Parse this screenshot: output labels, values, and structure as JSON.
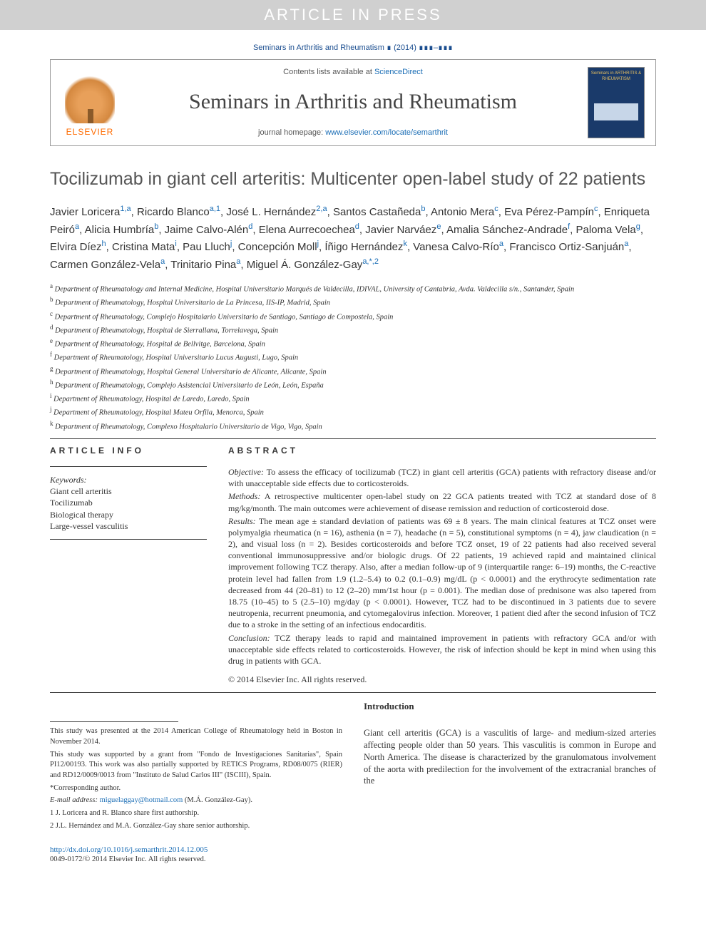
{
  "watermark": "ARTICLE IN PRESS",
  "journal_ref": "Seminars in Arthritis and Rheumatism ∎ (2014) ∎∎∎–∎∎∎",
  "header": {
    "contents_prefix": "Contents lists available at ",
    "contents_link": "ScienceDirect",
    "journal_title": "Seminars in Arthritis and Rheumatism",
    "homepage_prefix": "journal homepage: ",
    "homepage_link": "www.elsevier.com/locate/semarthrit",
    "publisher": "ELSEVIER",
    "cover_caption": "Seminars in ARTHRITIS & RHEUMATISM"
  },
  "title": "Tocilizumab in giant cell arteritis: Multicenter open-label study of 22 patients",
  "authors_html_parts": [
    {
      "name": "Javier Loricera",
      "sup": "1,a"
    },
    {
      "name": "Ricardo Blanco",
      "sup": "a,1"
    },
    {
      "name": "José L. Hernández",
      "sup": "2,a"
    },
    {
      "name": "Santos Castañeda",
      "sup": "b"
    },
    {
      "name": "Antonio Mera",
      "sup": "c"
    },
    {
      "name": "Eva Pérez-Pampín",
      "sup": "c"
    },
    {
      "name": "Enriqueta Peiró",
      "sup": "a"
    },
    {
      "name": "Alicia Humbría",
      "sup": "b"
    },
    {
      "name": "Jaime Calvo-Alén",
      "sup": "d"
    },
    {
      "name": "Elena Aurrecoechea",
      "sup": "d"
    },
    {
      "name": "Javier Narváez",
      "sup": "e"
    },
    {
      "name": "Amalia Sánchez-Andrade",
      "sup": "f"
    },
    {
      "name": "Paloma Vela",
      "sup": "g"
    },
    {
      "name": "Elvira Díez",
      "sup": "h"
    },
    {
      "name": "Cristina Mata",
      "sup": "i"
    },
    {
      "name": "Pau Lluch",
      "sup": "j"
    },
    {
      "name": "Concepción Moll",
      "sup": "j"
    },
    {
      "name": "Íñigo Hernández",
      "sup": "k"
    },
    {
      "name": "Vanesa Calvo-Río",
      "sup": "a"
    },
    {
      "name": "Francisco Ortiz-Sanjuán",
      "sup": "a"
    },
    {
      "name": "Carmen González-Vela",
      "sup": "a"
    },
    {
      "name": "Trinitario Pina",
      "sup": "a"
    },
    {
      "name": "Miguel Á. González-Gay",
      "sup": "a,*,2"
    }
  ],
  "affiliations": [
    {
      "key": "a",
      "text": "Department of Rheumatology and Internal Medicine, Hospital Universitario Marqués de Valdecilla, IDIVAL, University of Cantabria, Avda. Valdecilla s/n., Santander, Spain"
    },
    {
      "key": "b",
      "text": "Department of Rheumatology, Hospital Universitario de La Princesa, IIS-IP, Madrid, Spain"
    },
    {
      "key": "c",
      "text": "Department of Rheumatology, Complejo Hospitalario Universitario de Santiago, Santiago de Compostela, Spain"
    },
    {
      "key": "d",
      "text": "Department of Rheumatology, Hospital de Sierrallana, Torrelavega, Spain"
    },
    {
      "key": "e",
      "text": "Department of Rheumatology, Hospital de Bellvitge, Barcelona, Spain"
    },
    {
      "key": "f",
      "text": "Department of Rheumatology, Hospital Universitario Lucus Augusti, Lugo, Spain"
    },
    {
      "key": "g",
      "text": "Department of Rheumatology, Hospital General Universitario de Alicante, Alicante, Spain"
    },
    {
      "key": "h",
      "text": "Department of Rheumatology, Complejo Asistencial Universitario de León, León, España"
    },
    {
      "key": "i",
      "text": "Department of Rheumatology, Hospital de Laredo, Laredo, Spain"
    },
    {
      "key": "j",
      "text": "Department of Rheumatology, Hospital Mateu Orfila, Menorca, Spain"
    },
    {
      "key": "k",
      "text": "Department of Rheumatology, Complexo Hospitalario Universitario de Vigo, Vigo, Spain"
    }
  ],
  "article_info": {
    "heading": "ARTICLE INFO",
    "keywords_label": "Keywords:",
    "keywords": [
      "Giant cell arteritis",
      "Tocilizumab",
      "Biological therapy",
      "Large-vessel vasculitis"
    ]
  },
  "abstract": {
    "heading": "ABSTRACT",
    "objective_label": "Objective:",
    "objective": " To assess the efficacy of tocilizumab (TCZ) in giant cell arteritis (GCA) patients with refractory disease and/or with unacceptable side effects due to corticosteroids.",
    "methods_label": "Methods:",
    "methods": " A retrospective multicenter open-label study on 22 GCA patients treated with TCZ at standard dose of 8 mg/kg/month. The main outcomes were achievement of disease remission and reduction of corticosteroid dose.",
    "results_label": "Results:",
    "results": " The mean age ± standard deviation of patients was 69 ± 8 years. The main clinical features at TCZ onset were polymyalgia rheumatica (n = 16), asthenia (n = 7), headache (n = 5), constitutional symptoms (n = 4), jaw claudication (n = 2), and visual loss (n = 2). Besides corticosteroids and before TCZ onset, 19 of 22 patients had also received several conventional immunosuppressive and/or biologic drugs. Of 22 patients, 19 achieved rapid and maintained clinical improvement following TCZ therapy. Also, after a median follow-up of 9 (interquartile range: 6–19) months, the C-reactive protein level had fallen from 1.9 (1.2–5.4) to 0.2 (0.1–0.9) mg/dL (p < 0.0001) and the erythrocyte sedimentation rate decreased from 44 (20–81) to 12 (2–20) mm/1st hour (p = 0.001). The median dose of prednisone was also tapered from 18.75 (10–45) to 5 (2.5–10) mg/day (p < 0.0001). However, TCZ had to be discontinued in 3 patients due to severe neutropenia, recurrent pneumonia, and cytomegalovirus infection. Moreover, 1 patient died after the second infusion of TCZ due to a stroke in the setting of an infectious endocarditis.",
    "conclusion_label": "Conclusion:",
    "conclusion": " TCZ therapy leads to rapid and maintained improvement in patients with refractory GCA and/or with unacceptable side effects related to corticosteroids. However, the risk of infection should be kept in mind when using this drug in patients with GCA.",
    "copyright": "© 2014 Elsevier Inc. All rights reserved."
  },
  "footnotes": {
    "f1": "This study was presented at the 2014 American College of Rheumatology held in Boston in November 2014.",
    "f2": "This study was supported by a grant from \"Fondo de Investigaciones Sanitarias\", Spain PI12/00193. This work was also partially supported by RETICS Programs, RD08/0075 (RIER) and RD12/0009/0013 from \"Instituto de Salud Carlos III\" (ISCIII), Spain.",
    "corr_label": "*Corresponding author.",
    "email_label": "E-mail address: ",
    "email": "miguelaggay@hotmail.com",
    "email_name": " (M.Á. González-Gay).",
    "n1": "1 J. Loricera and R. Blanco share first authorship.",
    "n2": "2 J.L. Hernández and M.A. González-Gay share senior authorship."
  },
  "intro": {
    "heading": "Introduction",
    "text": "Giant cell arteritis (GCA) is a vasculitis of large- and medium-sized arteries affecting people older than 50 years. This vasculitis is common in Europe and North America. The disease is characterized by the granulomatous involvement of the aorta with predilection for the involvement of the extracranial branches of the"
  },
  "doi": {
    "link": "http://dx.doi.org/10.1016/j.semarthrit.2014.12.005",
    "issn": "0049-0172/© 2014 Elsevier Inc. All rights reserved."
  }
}
